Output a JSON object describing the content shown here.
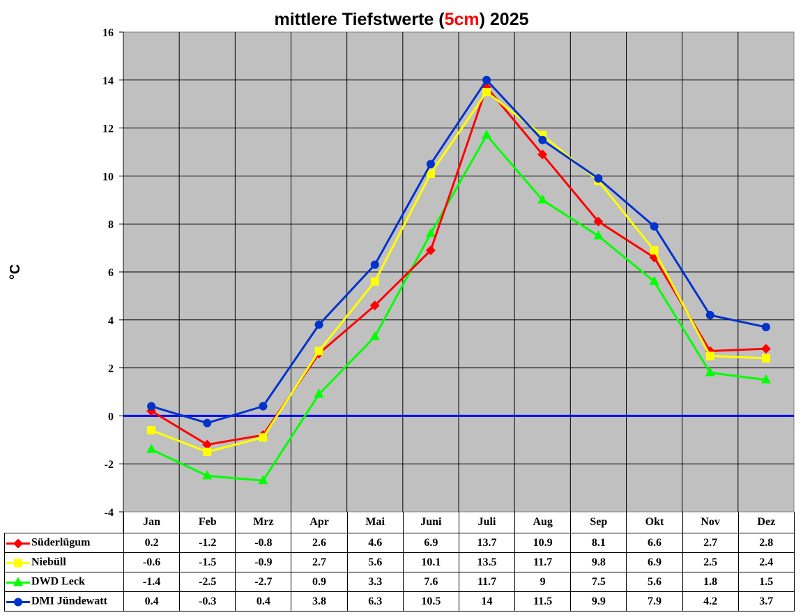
{
  "title": {
    "prefix": "mittlere Tiefstwerte (",
    "highlight": "5cm",
    "suffix": ") 2025",
    "highlight_color": "#ff0000"
  },
  "y_axis_label": "°C",
  "colors": {
    "plot_background": "#c0c0c0",
    "gridline": "#000000",
    "zero_line": "#0000ff"
  },
  "chart_data": {
    "type": "line",
    "title": "mittlere Tiefstwerte (5cm) 2025",
    "xlabel": "",
    "ylabel": "°C",
    "ylim": [
      -4,
      16
    ],
    "yticks": [
      -4,
      -2,
      0,
      2,
      4,
      6,
      8,
      10,
      12,
      14,
      16
    ],
    "grid": true,
    "legend_position": "data-table",
    "categories": [
      "Jan",
      "Feb",
      "Mrz",
      "Apr",
      "Mai",
      "Juni",
      "Juli",
      "Aug",
      "Sep",
      "Okt",
      "Nov",
      "Dez"
    ],
    "series": [
      {
        "name": "Süderlügum",
        "color": "#ff0000",
        "marker": "diamond",
        "values": [
          0.2,
          -1.2,
          -0.8,
          2.6,
          4.6,
          6.9,
          13.7,
          10.9,
          8.1,
          6.6,
          2.7,
          2.8
        ]
      },
      {
        "name": "Niebüll",
        "color": "#ffff00",
        "marker": "square",
        "values": [
          -0.6,
          -1.5,
          -0.9,
          2.7,
          5.6,
          10.1,
          13.5,
          11.7,
          9.8,
          6.9,
          2.5,
          2.4
        ]
      },
      {
        "name": "DWD Leck",
        "color": "#00ff00",
        "marker": "triangle",
        "values": [
          -1.4,
          -2.5,
          -2.7,
          0.9,
          3.3,
          7.6,
          11.7,
          9,
          7.5,
          5.6,
          1.8,
          1.5
        ]
      },
      {
        "name": "DMI Jündewatt",
        "color": "#0033cc",
        "marker": "circle",
        "values": [
          0.4,
          -0.3,
          0.4,
          3.8,
          6.3,
          10.5,
          14,
          11.5,
          9.9,
          7.9,
          4.2,
          3.7
        ]
      }
    ]
  },
  "table": {
    "rows": [
      {
        "label": "Süderlügum",
        "cells": [
          "0.2",
          "-1.2",
          "-0.8",
          "2.6",
          "4.6",
          "6.9",
          "13.7",
          "10.9",
          "8.1",
          "6.6",
          "2.7",
          "2.8"
        ]
      },
      {
        "label": "Niebüll",
        "cells": [
          "-0.6",
          "-1.5",
          "-0.9",
          "2.7",
          "5.6",
          "10.1",
          "13.5",
          "11.7",
          "9.8",
          "6.9",
          "2.5",
          "2.4"
        ]
      },
      {
        "label": "DWD Leck",
        "cells": [
          "-1.4",
          "-2.5",
          "-2.7",
          "0.9",
          "3.3",
          "7.6",
          "11.7",
          "9",
          "7.5",
          "5.6",
          "1.8",
          "1.5"
        ]
      },
      {
        "label": "DMI Jündewatt",
        "cells": [
          "0.4",
          "-0.3",
          "0.4",
          "3.8",
          "6.3",
          "10.5",
          "14",
          "11.5",
          "9.9",
          "7.9",
          "4.2",
          "3.7"
        ]
      }
    ]
  }
}
